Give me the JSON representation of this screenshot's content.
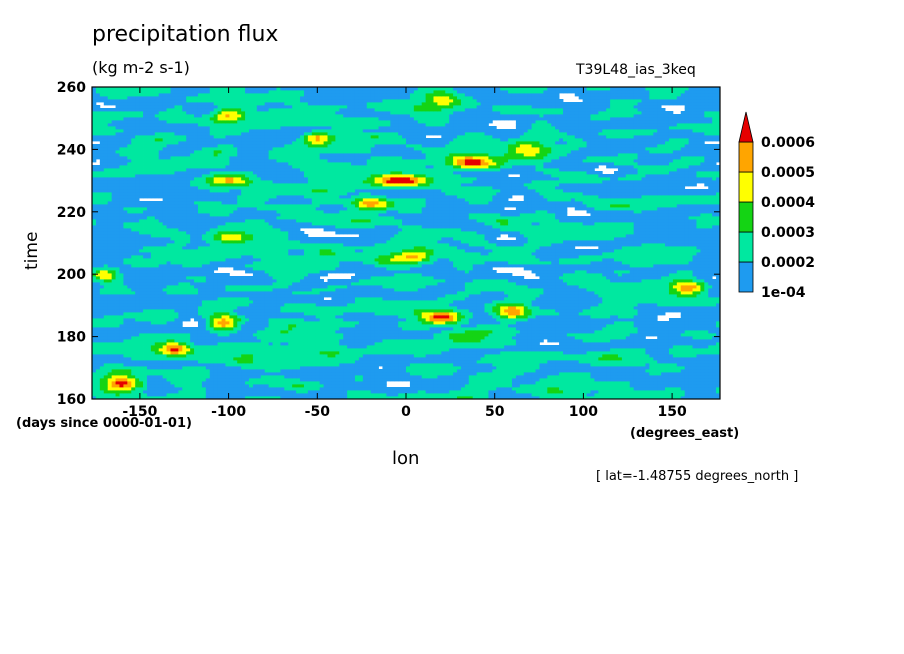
{
  "chart_data": {
    "type": "heatmap",
    "title": "precipitation flux",
    "units": "(kg m-2 s-1)",
    "run_label": "T39L48_ias_3keq",
    "xlabel": "lon",
    "ylabel": "time",
    "x_unit": "(degrees_east)",
    "y_unit": "(days since 0000-01-01)",
    "annotation": "[ lat=-1.48755 degrees_north ]",
    "xlim": [
      -177,
      177
    ],
    "ylim": [
      160,
      260
    ],
    "x_ticks": [
      -150,
      -100,
      -50,
      0,
      50,
      100,
      150
    ],
    "y_ticks": [
      160,
      180,
      200,
      220,
      240,
      260
    ],
    "colorbar": {
      "levels": [
        0.0001,
        0.0002,
        0.0003,
        0.0004,
        0.0005,
        0.0006
      ],
      "labels": [
        "1e-04",
        "0.0002",
        "0.0003",
        "0.0004",
        "0.0005",
        "0.0006"
      ],
      "colors": [
        "#1e9bf0",
        "#00e8a0",
        "#14d414",
        "#ffff00",
        "#ffa500",
        "#e60000"
      ],
      "below_color": "#ffffff",
      "extend": "max"
    },
    "features": [
      {
        "lon": -160,
        "time": 165,
        "amp": 1.0,
        "width": 10
      },
      {
        "lon": -130,
        "time": 176,
        "amp": 0.8,
        "width": 8
      },
      {
        "lon": -103,
        "time": 184,
        "amp": 0.9,
        "width": 9
      },
      {
        "lon": 20,
        "time": 186,
        "amp": 0.9,
        "width": 12
      },
      {
        "lon": 60,
        "time": 188,
        "amp": 0.9,
        "width": 10
      },
      {
        "lon": -170,
        "time": 200,
        "amp": 0.8,
        "width": 8
      },
      {
        "lon": 160,
        "time": 196,
        "amp": 0.9,
        "width": 10
      },
      {
        "lon": 5,
        "time": 206,
        "amp": 0.7,
        "width": 10
      },
      {
        "lon": -100,
        "time": 212,
        "amp": 0.6,
        "width": 10
      },
      {
        "lon": -20,
        "time": 223,
        "amp": 0.7,
        "width": 10
      },
      {
        "lon": -100,
        "time": 230,
        "amp": 0.7,
        "width": 12
      },
      {
        "lon": 0,
        "time": 230,
        "amp": 1.0,
        "width": 14
      },
      {
        "lon": 35,
        "time": 236,
        "amp": 0.9,
        "width": 12
      },
      {
        "lon": 70,
        "time": 240,
        "amp": 0.8,
        "width": 12
      },
      {
        "lon": -50,
        "time": 244,
        "amp": 0.8,
        "width": 8
      },
      {
        "lon": -100,
        "time": 251,
        "amp": 0.7,
        "width": 10
      },
      {
        "lon": 20,
        "time": 256,
        "amp": 0.6,
        "width": 10
      }
    ]
  }
}
